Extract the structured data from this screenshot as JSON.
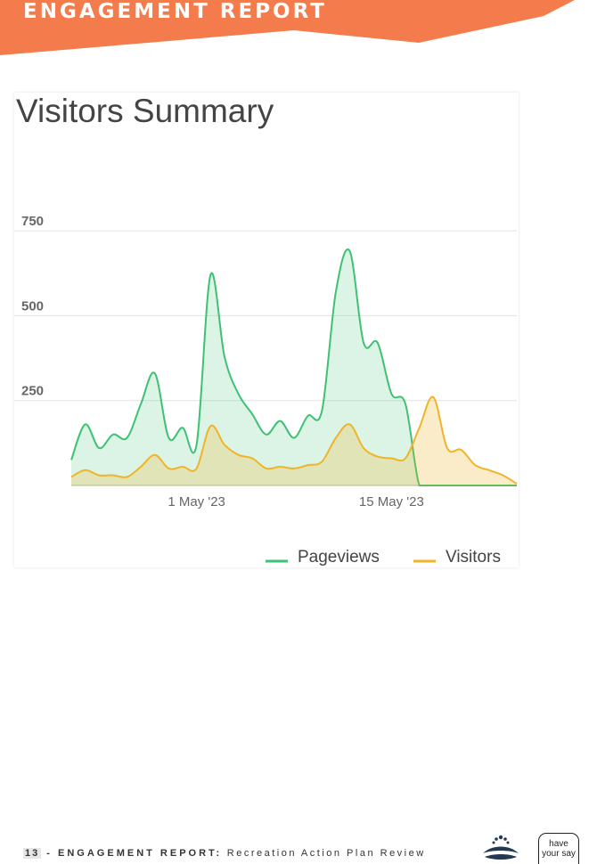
{
  "header": {
    "title": "ENGAGEMENT REPORT",
    "accent_color": "#f47b4b"
  },
  "card": {
    "title": "Visitors Summary"
  },
  "chart_data": {
    "type": "area",
    "title": "Visitors Summary",
    "ylim": [
      0,
      800
    ],
    "y_ticks": [
      "250",
      "500",
      "750"
    ],
    "x_ticks": [
      {
        "date": "2023-05-01",
        "label": "1 May '23"
      },
      {
        "date": "2023-05-15",
        "label": "15 May '23"
      }
    ],
    "x": [
      "2023-04-22",
      "2023-04-23",
      "2023-04-24",
      "2023-04-25",
      "2023-04-26",
      "2023-04-27",
      "2023-04-28",
      "2023-04-29",
      "2023-04-30",
      "2023-05-01",
      "2023-05-02",
      "2023-05-03",
      "2023-05-04",
      "2023-05-05",
      "2023-05-06",
      "2023-05-07",
      "2023-05-08",
      "2023-05-09",
      "2023-05-10",
      "2023-05-11",
      "2023-05-12",
      "2023-05-13",
      "2023-05-14",
      "2023-05-15",
      "2023-05-16",
      "2023-05-17",
      "2023-05-18",
      "2023-05-19",
      "2023-05-20",
      "2023-05-21",
      "2023-05-22",
      "2023-05-23",
      "2023-05-24"
    ],
    "series": [
      {
        "name": "Pageviews",
        "color": "#3fc173",
        "fill": "rgba(63,193,115,0.18)",
        "values": [
          75,
          180,
          110,
          150,
          140,
          240,
          330,
          140,
          170,
          120,
          620,
          380,
          270,
          210,
          150,
          190,
          140,
          205,
          220,
          570,
          690,
          420,
          420,
          270,
          240,
          0,
          0,
          0,
          0,
          0,
          0,
          0,
          0
        ]
      },
      {
        "name": "Visitors",
        "color": "#f0b429",
        "fill": "rgba(240,180,41,0.25)",
        "values": [
          25,
          45,
          30,
          30,
          25,
          55,
          90,
          50,
          55,
          50,
          175,
          120,
          90,
          80,
          50,
          55,
          50,
          60,
          70,
          140,
          180,
          110,
          85,
          80,
          80,
          170,
          260,
          110,
          105,
          60,
          45,
          30,
          5
        ]
      }
    ],
    "legend_position": "bottom-right",
    "grid": true
  },
  "footer": {
    "page_number": "13",
    "separator": " - ",
    "label": "ENGAGEMENT REPORT:",
    "document": " Recreation Action Plan Review"
  },
  "logos": {
    "council_icon": "council-logo-icon",
    "haveyoursay_line1": "have",
    "haveyoursay_line2": "your say"
  }
}
